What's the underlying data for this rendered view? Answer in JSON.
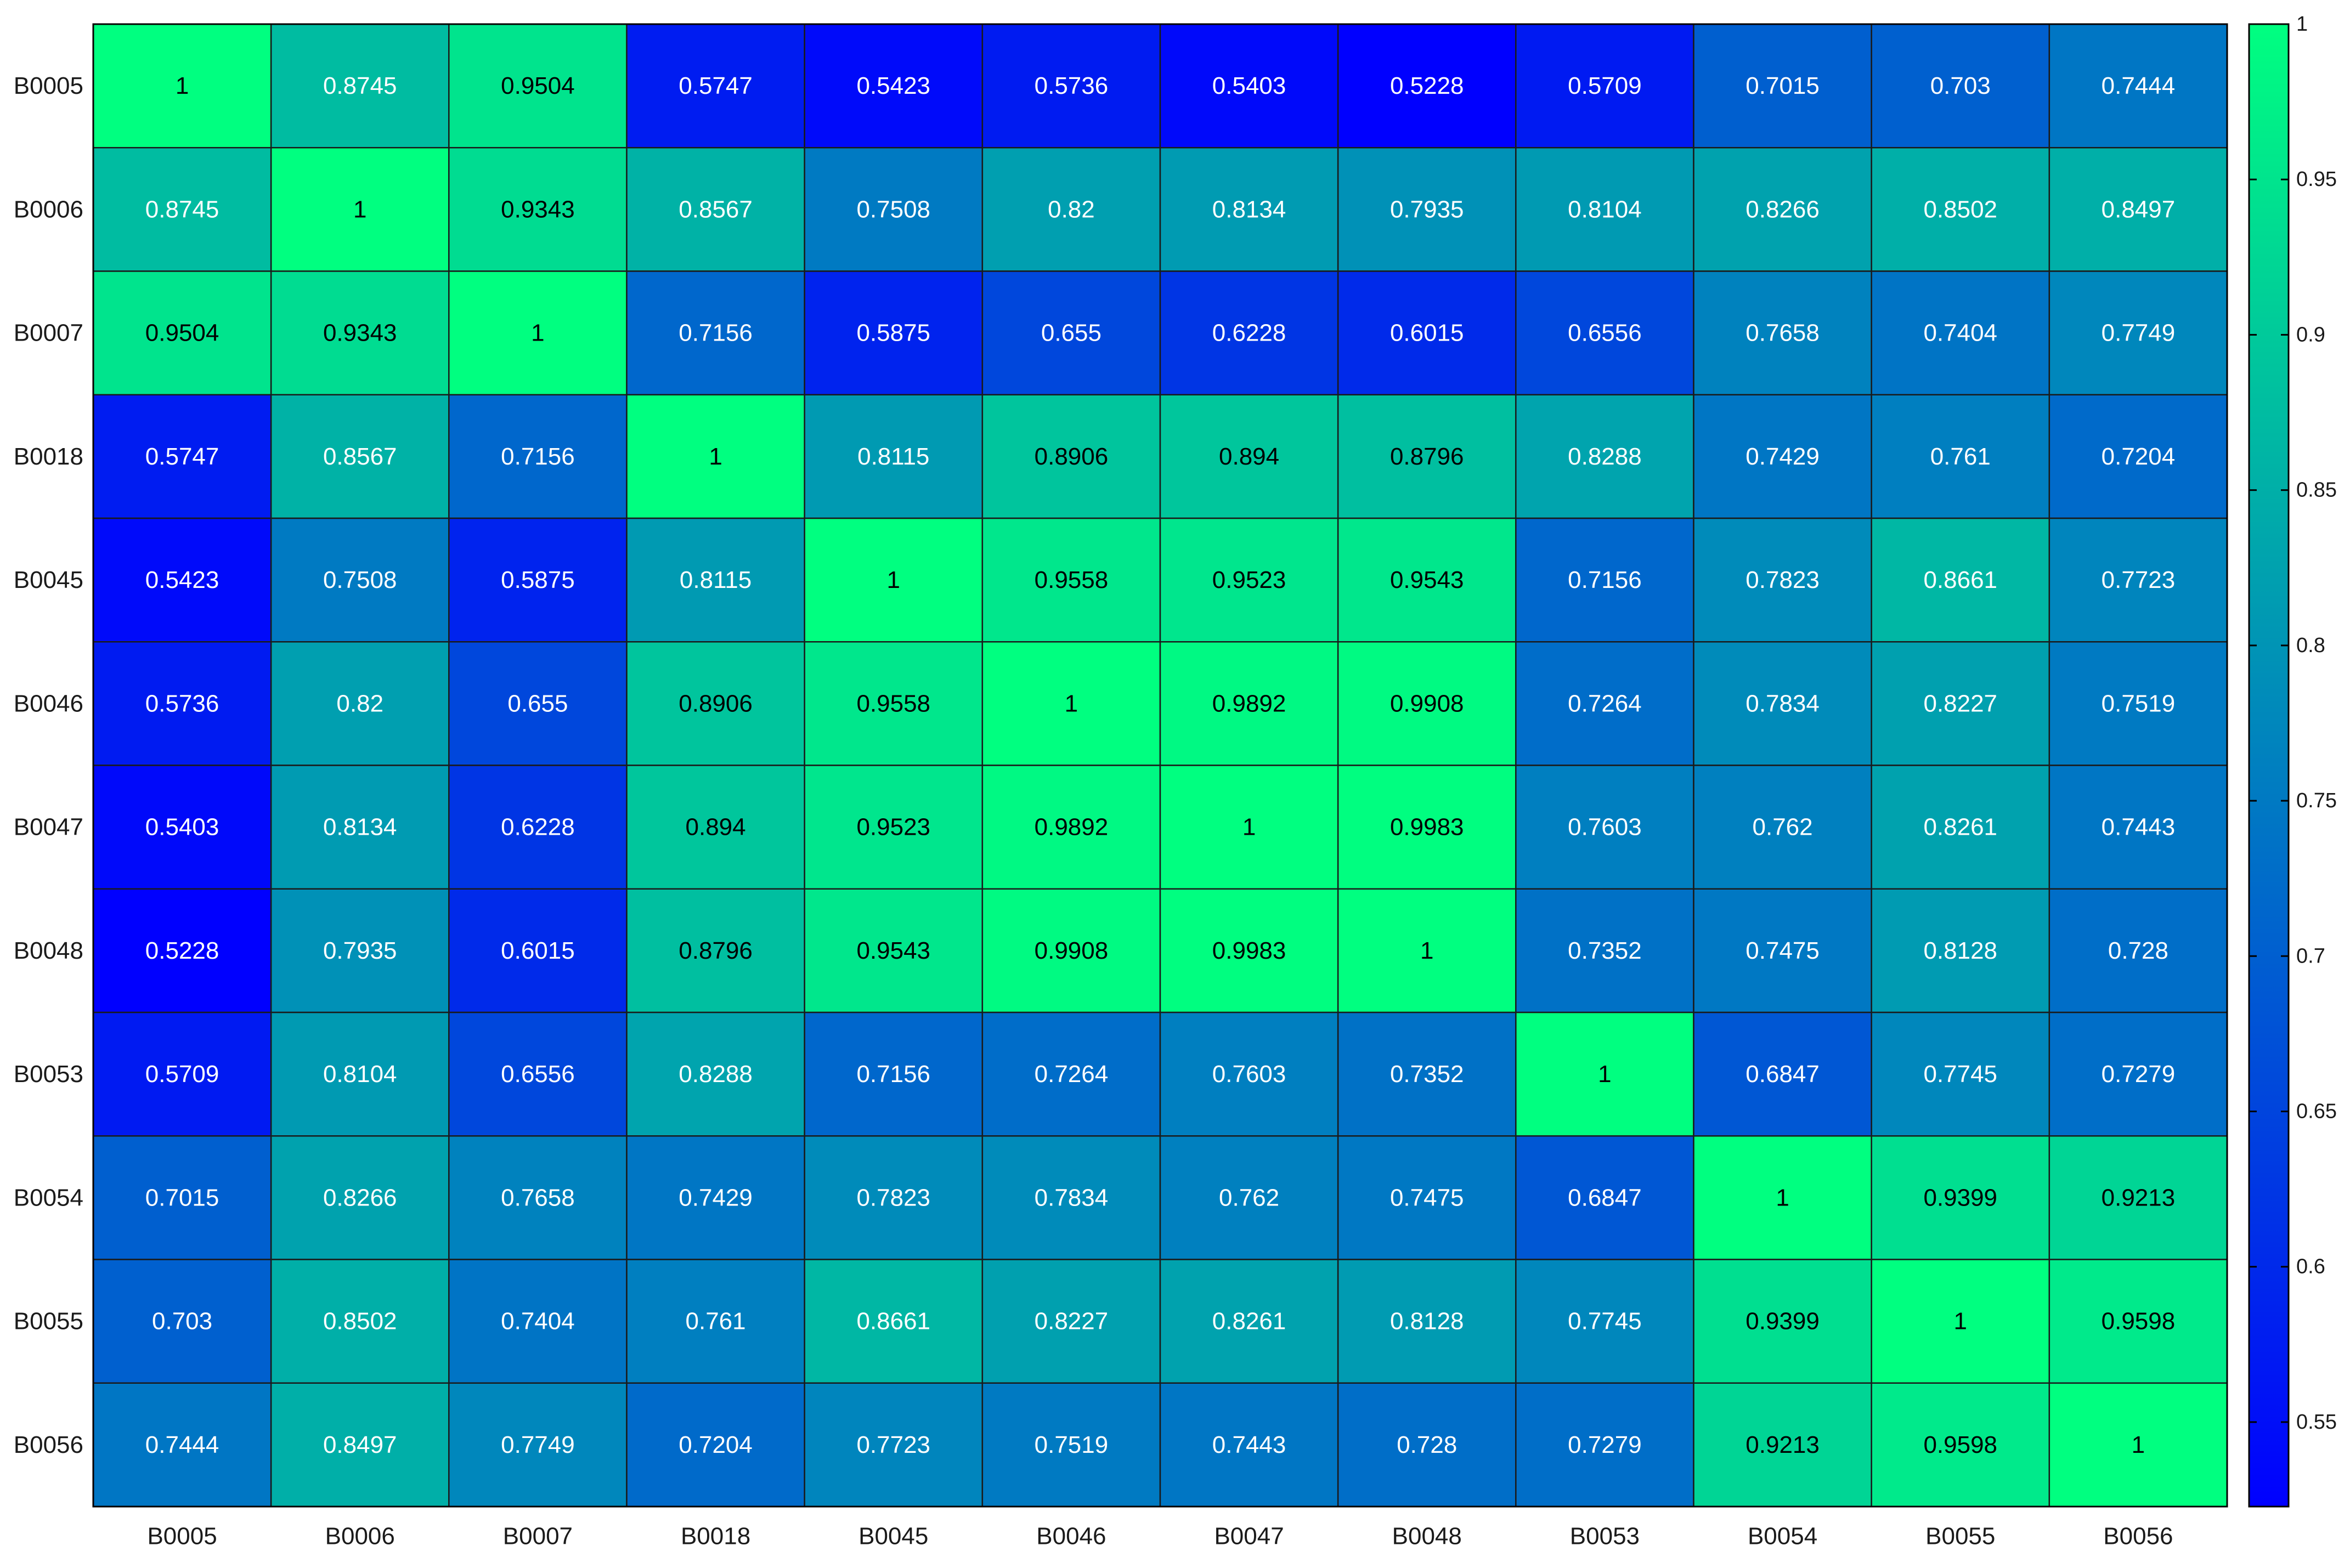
{
  "chart_data": {
    "type": "heatmap",
    "title": "",
    "xlabel": "",
    "ylabel": "",
    "x_categories": [
      "B0005",
      "B0006",
      "B0007",
      "B0018",
      "B0045",
      "B0046",
      "B0047",
      "B0048",
      "B0053",
      "B0054",
      "B0055",
      "B0056"
    ],
    "y_categories": [
      "B0005",
      "B0006",
      "B0007",
      "B0018",
      "B0045",
      "B0046",
      "B0047",
      "B0048",
      "B0053",
      "B0054",
      "B0055",
      "B0056"
    ],
    "values": [
      [
        "1",
        "0.8745",
        "0.9504",
        "0.5747",
        "0.5423",
        "0.5736",
        "0.5403",
        "0.5228",
        "0.5709",
        "0.7015",
        "0.703",
        "0.7444"
      ],
      [
        "0.8745",
        "1",
        "0.9343",
        "0.8567",
        "0.7508",
        "0.82",
        "0.8134",
        "0.7935",
        "0.8104",
        "0.8266",
        "0.8502",
        "0.8497"
      ],
      [
        "0.9504",
        "0.9343",
        "1",
        "0.7156",
        "0.5875",
        "0.655",
        "0.6228",
        "0.6015",
        "0.6556",
        "0.7658",
        "0.7404",
        "0.7749"
      ],
      [
        "0.5747",
        "0.8567",
        "0.7156",
        "1",
        "0.8115",
        "0.8906",
        "0.894",
        "0.8796",
        "0.8288",
        "0.7429",
        "0.761",
        "0.7204"
      ],
      [
        "0.5423",
        "0.7508",
        "0.5875",
        "0.8115",
        "1",
        "0.9558",
        "0.9523",
        "0.9543",
        "0.7156",
        "0.7823",
        "0.8661",
        "0.7723"
      ],
      [
        "0.5736",
        "0.82",
        "0.655",
        "0.8906",
        "0.9558",
        "1",
        "0.9892",
        "0.9908",
        "0.7264",
        "0.7834",
        "0.8227",
        "0.7519"
      ],
      [
        "0.5403",
        "0.8134",
        "0.6228",
        "0.894",
        "0.9523",
        "0.9892",
        "1",
        "0.9983",
        "0.7603",
        "0.762",
        "0.8261",
        "0.7443"
      ],
      [
        "0.5228",
        "0.7935",
        "0.6015",
        "0.8796",
        "0.9543",
        "0.9908",
        "0.9983",
        "1",
        "0.7352",
        "0.7475",
        "0.8128",
        "0.728"
      ],
      [
        "0.5709",
        "0.8104",
        "0.6556",
        "0.8288",
        "0.7156",
        "0.7264",
        "0.7603",
        "0.7352",
        "1",
        "0.6847",
        "0.7745",
        "0.7279"
      ],
      [
        "0.7015",
        "0.8266",
        "0.7658",
        "0.7429",
        "0.7823",
        "0.7834",
        "0.762",
        "0.7475",
        "0.6847",
        "1",
        "0.9399",
        "0.9213"
      ],
      [
        "0.703",
        "0.8502",
        "0.7404",
        "0.761",
        "0.8661",
        "0.8227",
        "0.8261",
        "0.8128",
        "0.7745",
        "0.9399",
        "1",
        "0.9598"
      ],
      [
        "0.7444",
        "0.8497",
        "0.7749",
        "0.7204",
        "0.7723",
        "0.7519",
        "0.7443",
        "0.728",
        "0.7279",
        "0.9213",
        "0.9598",
        "1"
      ]
    ],
    "colormap": {
      "name": "winter",
      "low_color": "#0000ff",
      "high_color": "#00ff80",
      "range": [
        0.5228,
        1
      ]
    },
    "colorbar": {
      "ticks": [
        "0.55",
        "0.6",
        "0.65",
        "0.7",
        "0.75",
        "0.8",
        "0.85",
        "0.9",
        "0.95",
        "1"
      ],
      "position": "right"
    },
    "grid": true,
    "cell_label_colors": {
      "light_text": "#ffffff",
      "dark_text": "#000000",
      "threshold": 0.875
    }
  }
}
